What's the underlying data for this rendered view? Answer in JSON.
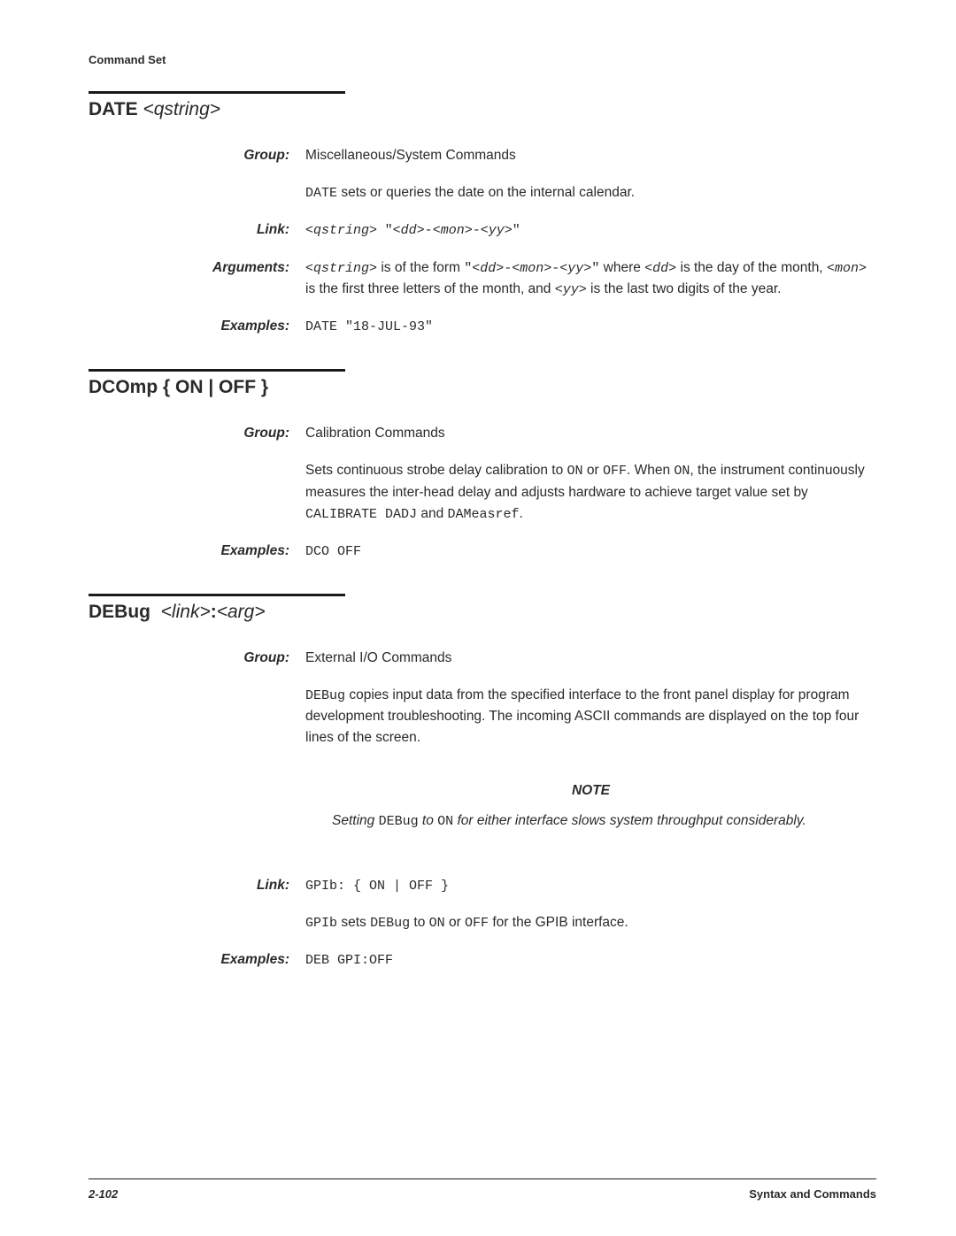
{
  "header": {
    "title": "Command Set"
  },
  "sections": [
    {
      "title_html": "DATE <span class=\"arg\">&lt;qstring&gt;</span>",
      "rows": [
        {
          "label": "Group:",
          "html": "Miscellaneous/System Commands"
        },
        {
          "label": "",
          "html": "<span class=\"mono\">DATE</span> sets or queries the date on the internal calendar."
        },
        {
          "label": "Link:",
          "html": "<span class=\"mono-i\">&lt;qstring&gt;</span>&nbsp; <span class=\"mono\">\"</span><span class=\"mono-i\">&lt;dd&gt;</span><span class=\"mono\">-</span><span class=\"mono-i\">&lt;mon&gt;</span><span class=\"mono\">-</span><span class=\"mono-i\">&lt;yy&gt;</span><span class=\"mono\">\"</span>"
        },
        {
          "label": "Arguments:",
          "html": "<span class=\"mono-i\">&lt;qstring&gt;</span> is of the form <span class=\"mono\">\"</span><span class=\"mono-i\">&lt;dd&gt;</span><span class=\"mono\">-</span><span class=\"mono-i\">&lt;mon&gt;</span><span class=\"mono\">-</span><span class=\"mono-i\">&lt;yy&gt;</span><span class=\"mono\">\"</span> where <span class=\"mono-i\">&lt;dd&gt;</span> is the day of the month, <span class=\"mono-i\">&lt;mon&gt;</span> is the first three letters of the month, and <span class=\"mono-i\">&lt;yy&gt;</span> is the last two digits of the year."
        },
        {
          "label": "Examples:",
          "html": "<span class=\"mono\">DATE \"18-JUL-93\"</span>"
        }
      ]
    },
    {
      "title_html": "DCOmp { ON | OFF }",
      "rows": [
        {
          "label": "Group:",
          "html": "Calibration Commands"
        },
        {
          "label": "",
          "html": "Sets continuous strobe delay calibration to <span class=\"mono\">ON</span> or <span class=\"mono\">OFF</span>. When <span class=\"mono\">ON</span>, the instrument continuously measures the inter-head delay and adjusts hardware to achieve target value set by <span class=\"mono\">CALIBRATE DADJ</span> and <span class=\"mono\">DAMeasref</span>."
        },
        {
          "label": "Examples:",
          "html": "<span class=\"mono\">DCO OFF</span>"
        }
      ]
    },
    {
      "title_html": "DEBug&nbsp; <span class=\"arg\">&lt;link&gt;</span>:<span class=\"arg\">&lt;arg&gt;</span>",
      "rows": [
        {
          "label": "Group:",
          "html": "External I/O Commands"
        },
        {
          "label": "",
          "html": "<span class=\"mono\">DEBug</span> copies input data from the specified interface to the front panel display for program development troubleshooting. The incoming ASCII commands are displayed on the top four lines of the screen."
        },
        {
          "label": "__note__",
          "note_title": "NOTE",
          "note_html": "Setting <span class=\"mono\" style=\"font-style:normal;\">DEBug</span> to <span class=\"mono\" style=\"font-style:normal;\">ON</span> for either interface slows system throughput considerably."
        },
        {
          "label": "Link:",
          "html": "<span class=\"mono\">GPIb: { ON | OFF }</span>"
        },
        {
          "label": "",
          "html": "<span class=\"mono\">GPIb</span> sets <span class=\"mono\">DEBug</span> to <span class=\"mono\">ON</span> or <span class=\"mono\">OFF</span> for the GPIB interface."
        },
        {
          "label": "Examples:",
          "html": "<span class=\"mono\">DEB GPI:OFF</span>"
        }
      ]
    }
  ],
  "footer": {
    "page": "2-102",
    "right": "Syntax and Commands"
  }
}
